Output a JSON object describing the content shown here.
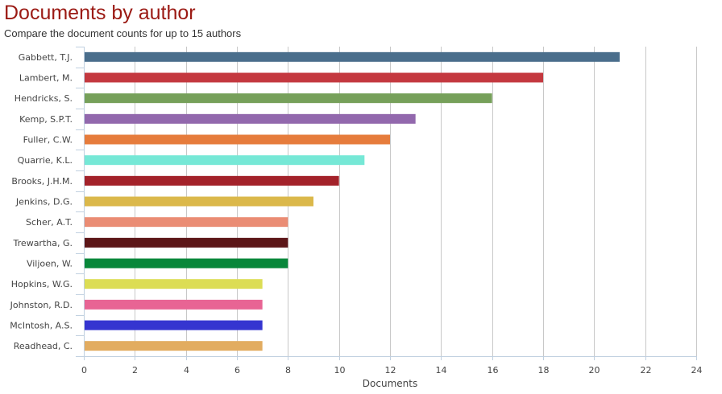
{
  "chart_data": {
    "type": "bar",
    "orientation": "horizontal",
    "title": "Documents by author",
    "subtitle": "Compare the document counts for up to 15 authors",
    "xlabel": "Documents",
    "ylabel": "",
    "xlim": [
      0,
      24
    ],
    "xticks": [
      0,
      2,
      4,
      6,
      8,
      10,
      12,
      14,
      16,
      18,
      20,
      22,
      24
    ],
    "grid": true,
    "categories": [
      "Gabbett, T.J.",
      "Lambert, M.",
      "Hendricks, S.",
      "Kemp, S.P.T.",
      "Fuller, C.W.",
      "Quarrie, K.L.",
      "Brooks, J.H.M.",
      "Jenkins, D.G.",
      "Scher, A.T.",
      "Trewartha, G.",
      "Viljoen, W.",
      "Hopkins, W.G.",
      "Johnston, R.D.",
      "McIntosh, A.S.",
      "Readhead, C."
    ],
    "values": [
      21,
      18,
      16,
      13,
      12,
      11,
      10,
      9,
      8,
      8,
      8,
      7,
      7,
      7,
      7
    ],
    "colors": [
      "#4a6e8c",
      "#c4383f",
      "#76a05a",
      "#9268ad",
      "#e67c3c",
      "#76e8d6",
      "#a3222a",
      "#dbb84a",
      "#ea8c74",
      "#5c1618",
      "#08873a",
      "#dcdd54",
      "#e86494",
      "#3535d0",
      "#e2ac60"
    ]
  }
}
